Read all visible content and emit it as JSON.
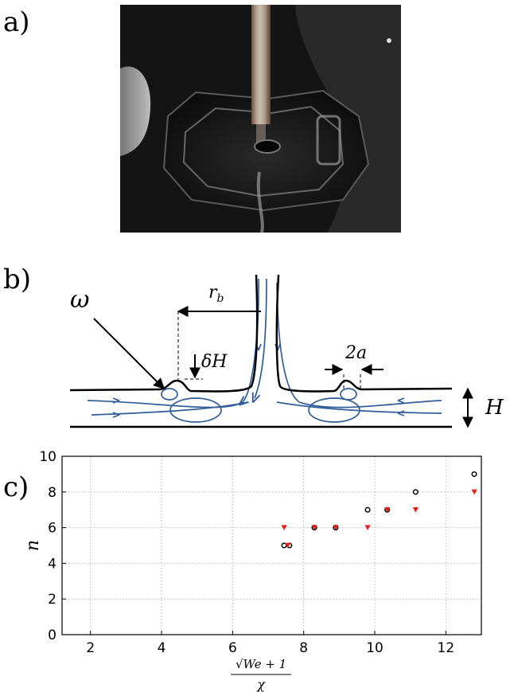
{
  "panels": {
    "a": {
      "label": "a)"
    },
    "b": {
      "label": "b)",
      "symbols": {
        "omega": "ω",
        "r_b": "r",
        "r_b_sub": "b",
        "delta_H": "δH",
        "two_a": "2a",
        "H": "H"
      }
    },
    "c": {
      "label": "c)"
    }
  },
  "colors": {
    "streamline": "#2e5d99",
    "open_marker": "#000000",
    "filled_marker": "#e8201c",
    "grid": "#bdbdbd"
  },
  "chart_data": {
    "type": "scatter",
    "title": "",
    "xlabel_num": "√We + 1",
    "xlabel_den": "χ",
    "ylabel": "n",
    "xlim": [
      1.2,
      13
    ],
    "ylim": [
      0,
      10
    ],
    "xticks": [
      2,
      4,
      6,
      8,
      10,
      12
    ],
    "yticks": [
      0,
      2,
      4,
      6,
      8,
      10
    ],
    "grid": true,
    "series": [
      {
        "marker": "open-circle",
        "x": [
          7.45,
          7.6,
          8.3,
          8.9,
          9.8,
          10.35,
          11.15,
          12.8
        ],
        "y": [
          5,
          5,
          6,
          6,
          7,
          7,
          8,
          9
        ]
      },
      {
        "marker": "filled-triangle-down",
        "x": [
          7.45,
          7.55,
          8.3,
          8.9,
          9.8,
          10.35,
          11.15,
          12.8
        ],
        "y": [
          6,
          5,
          6,
          6,
          6,
          7,
          7,
          8
        ]
      }
    ]
  }
}
